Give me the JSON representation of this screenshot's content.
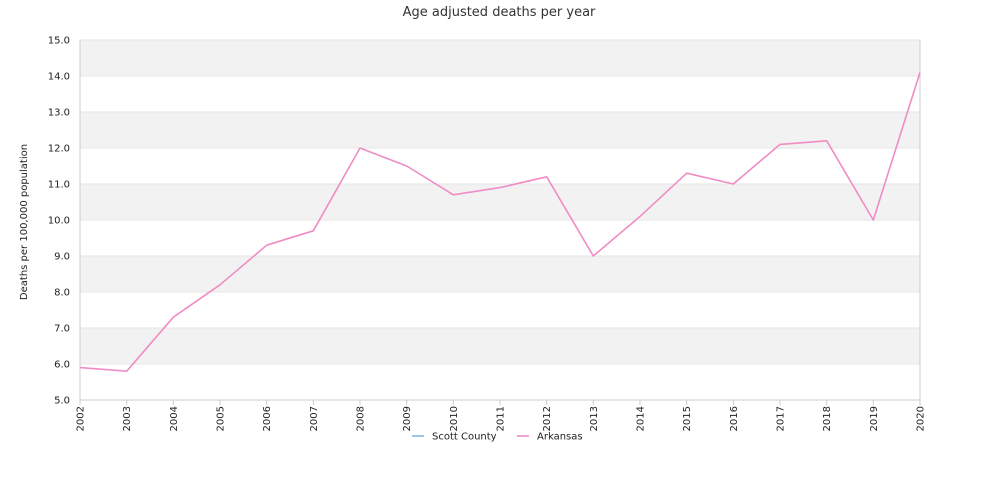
{
  "colors": {
    "band": "#f2f2f2",
    "grid": "#e6e6e6",
    "axis": "#cccccc",
    "scott_county": "#88b8e0",
    "arkansas": "#f08cc4"
  },
  "chart_data": {
    "type": "line",
    "title": "Age adjusted deaths per year",
    "xlabel": "",
    "ylabel": "Deaths per 100,000 population",
    "ylim": [
      5.0,
      15.0
    ],
    "y_ticks": [
      "5.0",
      "6.0",
      "7.0",
      "8.0",
      "9.0",
      "10.0",
      "11.0",
      "12.0",
      "13.0",
      "14.0",
      "15.0"
    ],
    "categories": [
      "2002",
      "2003",
      "2004",
      "2005",
      "2006",
      "2007",
      "2008",
      "2009",
      "2010",
      "2011",
      "2012",
      "2013",
      "2014",
      "2015",
      "2016",
      "2017",
      "2018",
      "2019",
      "2020"
    ],
    "grid": true,
    "legend_position": "bottom",
    "series": [
      {
        "name": "Scott County",
        "color": "#88b8e0",
        "values": [
          null,
          null,
          null,
          null,
          null,
          null,
          null,
          null,
          null,
          null,
          null,
          null,
          null,
          null,
          null,
          null,
          null,
          null,
          null
        ]
      },
      {
        "name": "Arkansas",
        "color": "#f08cc4",
        "values": [
          5.9,
          5.8,
          7.3,
          8.2,
          9.3,
          9.7,
          12.0,
          11.5,
          10.7,
          10.9,
          11.2,
          9.0,
          10.1,
          11.3,
          11.0,
          12.1,
          12.2,
          10.0,
          14.1
        ]
      }
    ]
  }
}
